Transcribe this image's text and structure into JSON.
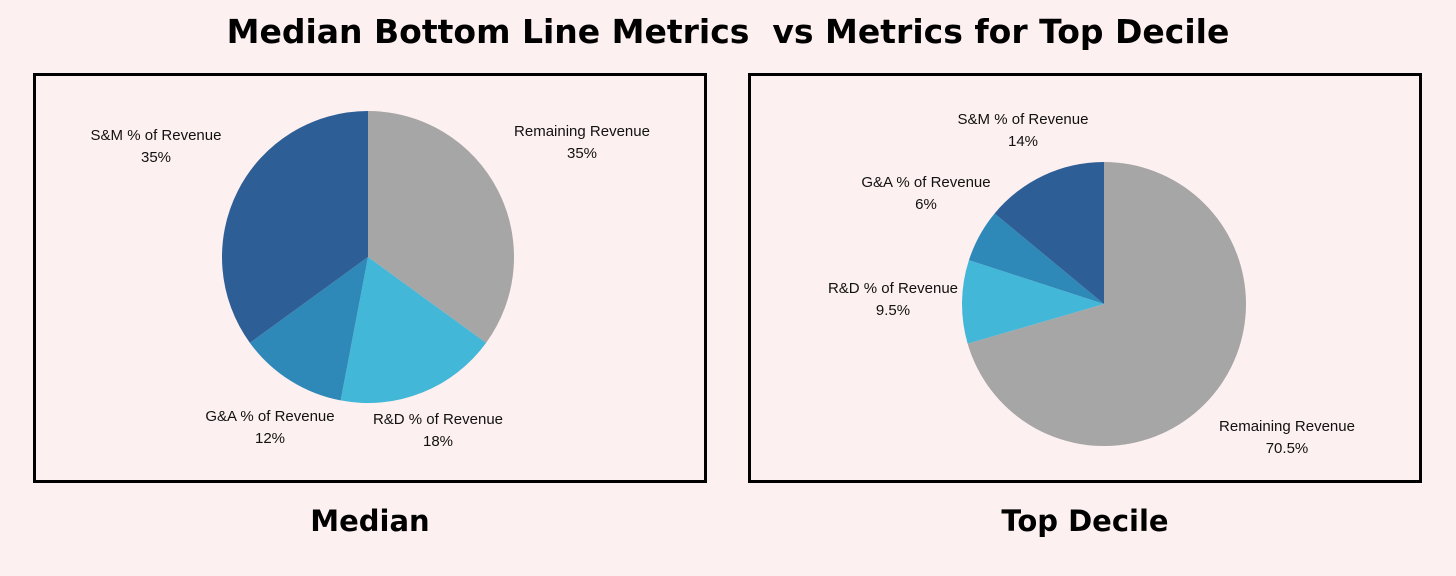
{
  "title": "Median Bottom Line Metrics  vs Metrics for Top Decile",
  "chart_data": [
    {
      "type": "pie",
      "caption": "Median",
      "slices": [
        {
          "label": "Remaining Revenue",
          "value": 35,
          "display": "35%",
          "color": "#a6a6a6"
        },
        {
          "label": "R&D % of Revenue",
          "value": 18,
          "display": "18%",
          "color": "#42b7d7"
        },
        {
          "label": "G&A % of Revenue",
          "value": 12,
          "display": "12%",
          "color": "#2e88b8"
        },
        {
          "label": "S&M % of Revenue",
          "value": 35,
          "display": "35%",
          "color": "#2d5e96"
        }
      ]
    },
    {
      "type": "pie",
      "caption": "Top Decile",
      "slices": [
        {
          "label": "Remaining Revenue",
          "value": 70.5,
          "display": "70.5%",
          "color": "#a6a6a6"
        },
        {
          "label": "R&D % of Revenue",
          "value": 9.5,
          "display": "9.5%",
          "color": "#42b7d7"
        },
        {
          "label": "G&A % of Revenue",
          "value": 6,
          "display": "6%",
          "color": "#2e88b8"
        },
        {
          "label": "S&M % of Revenue",
          "value": 14,
          "display": "14%",
          "color": "#2d5e96"
        }
      ]
    }
  ]
}
